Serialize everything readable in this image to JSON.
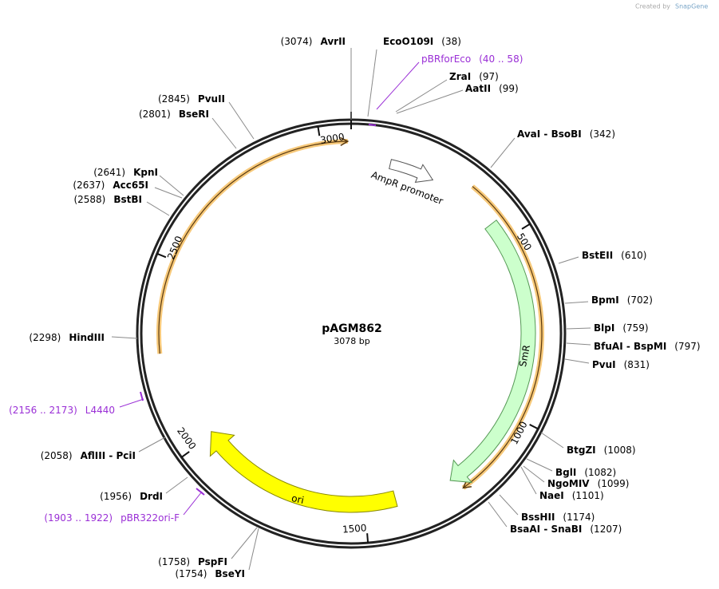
{
  "header": {
    "prefix": "Created by",
    "brand": "SnapGene"
  },
  "title": "pAGM862",
  "length": "3078 bp",
  "sites": [
    {
      "name": "AvrII",
      "pos": "(3074)"
    },
    {
      "name": "EcoO109I",
      "pos": "(38)"
    },
    {
      "name": "ZraI",
      "pos": "(97)"
    },
    {
      "name": "AatII",
      "pos": "(99)"
    },
    {
      "name": "AvaI - BsoBI",
      "pos": "(342)"
    },
    {
      "name": "BstEII",
      "pos": "(610)"
    },
    {
      "name": "BpmI",
      "pos": "(702)"
    },
    {
      "name": "BlpI",
      "pos": "(759)"
    },
    {
      "name": "BfuAI - BspMI",
      "pos": "(797)"
    },
    {
      "name": "PvuI",
      "pos": "(831)"
    },
    {
      "name": "BtgZI",
      "pos": "(1008)"
    },
    {
      "name": "BglI",
      "pos": "(1082)"
    },
    {
      "name": "NgoMIV",
      "pos": "(1099)"
    },
    {
      "name": "NaeI",
      "pos": "(1101)"
    },
    {
      "name": "BssHII",
      "pos": "(1174)"
    },
    {
      "name": "BsaAI - SnaBI",
      "pos": "(1207)"
    },
    {
      "name": "BseYI",
      "pos": "(1754)"
    },
    {
      "name": "PspFI",
      "pos": "(1758)"
    },
    {
      "name": "DrdI",
      "pos": "(1956)"
    },
    {
      "name": "AflIII - PciI",
      "pos": "(2058)"
    },
    {
      "name": "HindIII",
      "pos": "(2298)"
    },
    {
      "name": "BstBI",
      "pos": "(2588)"
    },
    {
      "name": "Acc65I",
      "pos": "(2637)"
    },
    {
      "name": "KpnI",
      "pos": "(2641)"
    },
    {
      "name": "BseRI",
      "pos": "(2801)"
    },
    {
      "name": "PvuII",
      "pos": "(2845)"
    }
  ],
  "primers": [
    {
      "name": "pBRforEco",
      "range": "(40 .. 58)"
    },
    {
      "name": "L4440",
      "range": "(2156 .. 2173)"
    },
    {
      "name": "pBR322ori-F",
      "range": "(1903 .. 1922)"
    }
  ],
  "features": [
    {
      "label": "AmpR promoter"
    },
    {
      "label": "SmR"
    },
    {
      "label": "ori"
    }
  ],
  "ruler": [
    "500",
    "1000",
    "1500",
    "2000",
    "2500",
    "3000"
  ]
}
